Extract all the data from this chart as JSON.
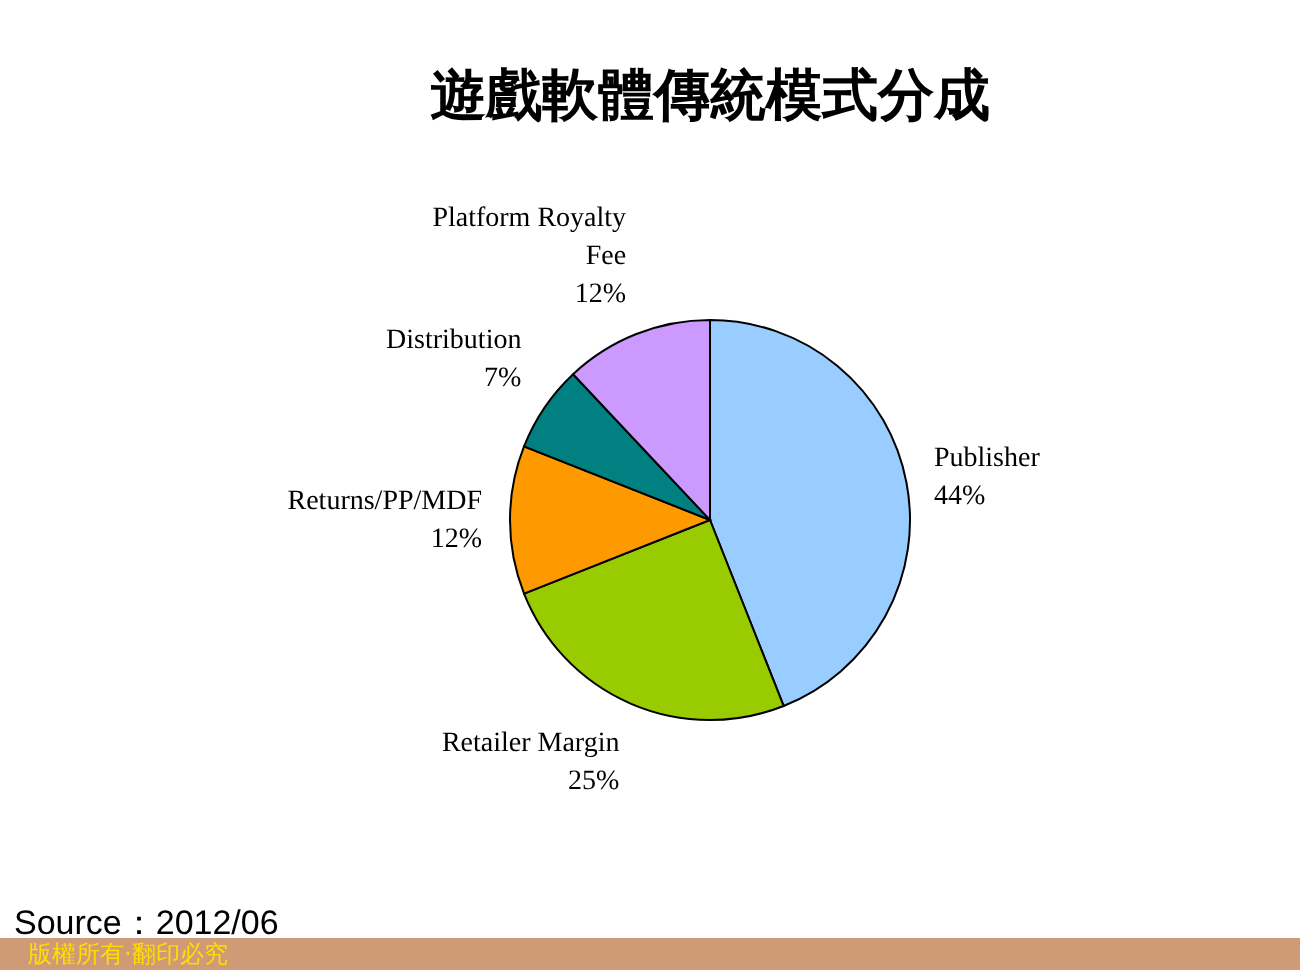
{
  "chart_data": {
    "type": "pie",
    "title": "遊戲軟體傳統模式分成",
    "categories": [
      "Publisher",
      "Retailer Margin",
      "Returns/PP/MDF",
      "Distribution",
      "Platform Royalty Fee"
    ],
    "values": [
      44,
      25,
      12,
      7,
      12
    ],
    "colors": [
      "#99ccff",
      "#99cc00",
      "#ff9900",
      "#008080",
      "#cc99ff"
    ],
    "value_labels": [
      "44%",
      "25%",
      "12%",
      "7%",
      "12%"
    ],
    "annotations": [
      "Source：2012/06",
      "版權所有‧翻印必究"
    ]
  }
}
